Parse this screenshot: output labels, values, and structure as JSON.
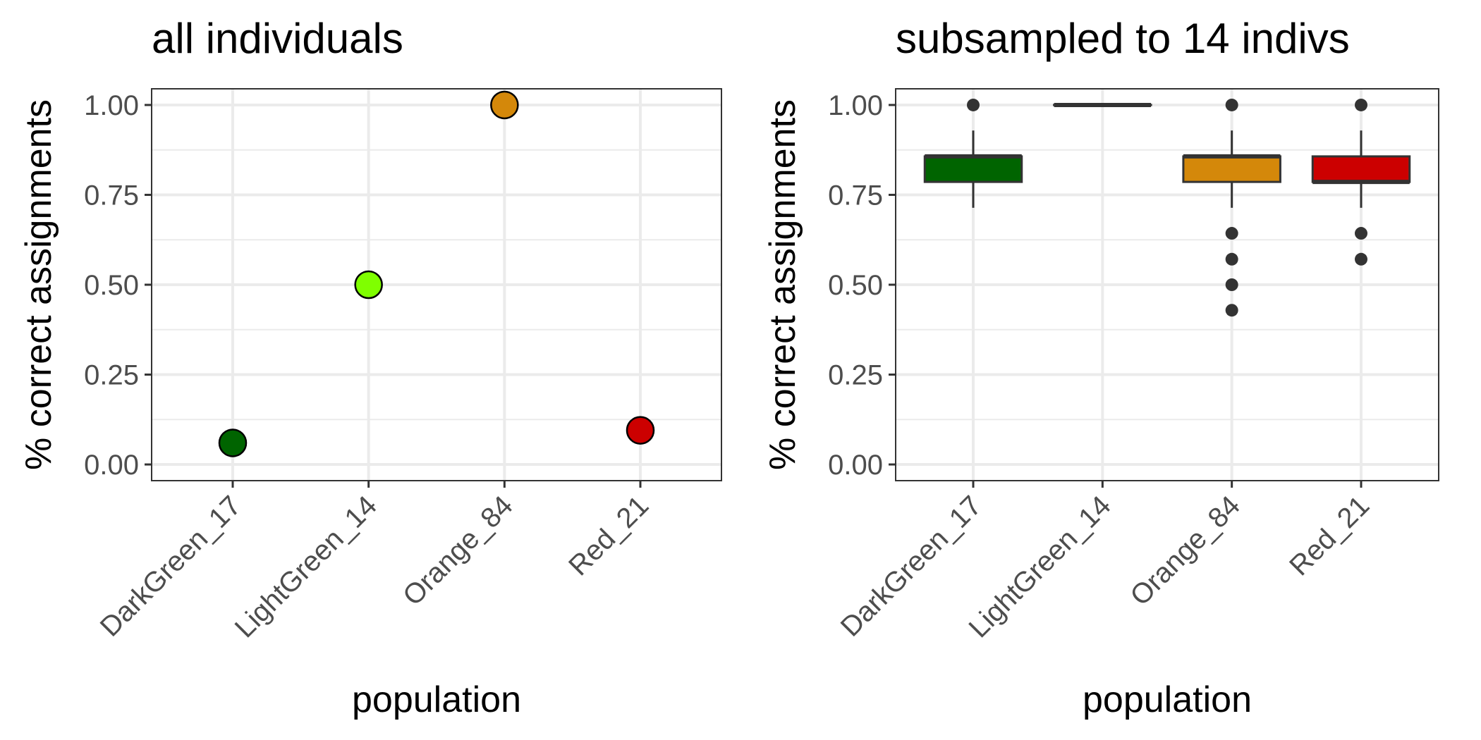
{
  "chart_data": [
    {
      "type": "scatter",
      "title": "all individuals",
      "xlabel": "population",
      "ylabel": "% correct assignments",
      "categories": [
        "DarkGreen_17",
        "LightGreen_14",
        "Orange_84",
        "Red_21"
      ],
      "values": [
        0.06,
        0.5,
        1.0,
        0.095
      ],
      "colors": [
        "#006400",
        "#7fff00",
        "#d4880a",
        "#cc0000"
      ],
      "ylim": [
        -0.045,
        1.045
      ],
      "yticks": [
        0.0,
        0.25,
        0.5,
        0.75,
        1.0
      ],
      "ytick_labels": [
        "0.00",
        "0.25",
        "0.50",
        "0.75",
        "1.00"
      ],
      "grid": true
    },
    {
      "type": "box",
      "title": "subsampled to 14 indivs",
      "xlabel": "population",
      "ylabel": "% correct assignments",
      "categories": [
        "DarkGreen_17",
        "LightGreen_14",
        "Orange_84",
        "Red_21"
      ],
      "colors": [
        "#006400",
        "#7fff00",
        "#d4880a",
        "#cc0000"
      ],
      "boxes": [
        {
          "q1": 0.786,
          "median": 0.857,
          "q3": 0.857,
          "whisker_low": 0.714,
          "whisker_high": 0.929,
          "outliers": [
            1.0
          ]
        },
        {
          "q1": 1.0,
          "median": 1.0,
          "q3": 1.0,
          "whisker_low": 1.0,
          "whisker_high": 1.0,
          "outliers": []
        },
        {
          "q1": 0.786,
          "median": 0.857,
          "q3": 0.857,
          "whisker_low": 0.714,
          "whisker_high": 0.929,
          "outliers": [
            1.0,
            0.643,
            0.571,
            0.5,
            0.429
          ]
        },
        {
          "q1": 0.786,
          "median": 0.786,
          "q3": 0.857,
          "whisker_low": 0.714,
          "whisker_high": 0.929,
          "outliers": [
            1.0,
            0.643,
            0.571
          ]
        }
      ],
      "ylim": [
        -0.045,
        1.045
      ],
      "yticks": [
        0.0,
        0.25,
        0.5,
        0.75,
        1.0
      ],
      "ytick_labels": [
        "0.00",
        "0.25",
        "0.50",
        "0.75",
        "1.00"
      ],
      "grid": true
    }
  ]
}
